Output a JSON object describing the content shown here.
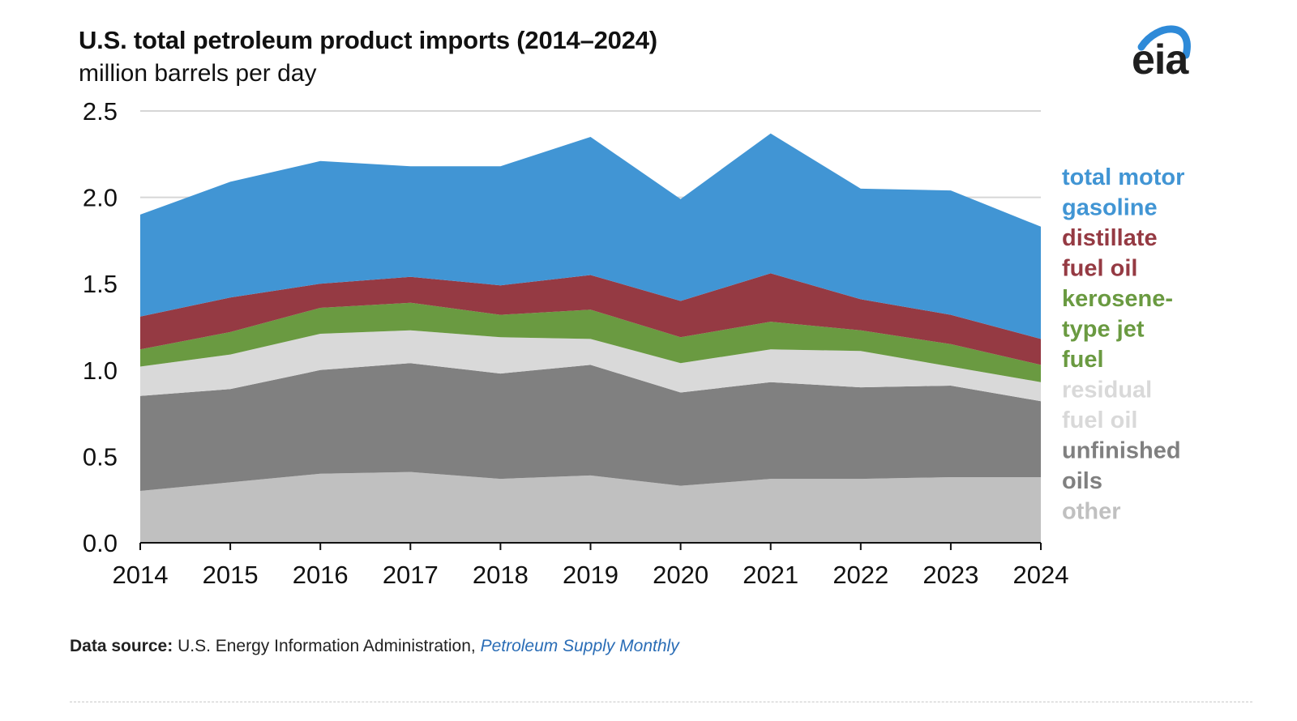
{
  "header": {
    "title": "U.S. total petroleum product imports (2014–2024)",
    "subtitle": "million barrels per day"
  },
  "logo": {
    "text": "eia",
    "icon": "eia-logo-arc-icon",
    "arc_color": "#2e8ad8"
  },
  "footer": {
    "source_label": "Data source:",
    "source_org": "U.S. Energy Information Administration,",
    "source_pub": "Petroleum Supply Monthly"
  },
  "chart_data": {
    "type": "area",
    "stacked": true,
    "title": "U.S. total petroleum product imports (2014–2024)",
    "ylabel": "million barrels per day",
    "xlabel": "",
    "ylim": [
      0,
      2.5
    ],
    "yticks": [
      "0.0",
      "0.5",
      "1.0",
      "1.5",
      "2.0",
      "2.5"
    ],
    "ytick_values": [
      0,
      0.5,
      1.0,
      1.5,
      2.0,
      2.5
    ],
    "grid": true,
    "legend": "right",
    "categories": [
      "2014",
      "2015",
      "2016",
      "2017",
      "2018",
      "2019",
      "2020",
      "2021",
      "2022",
      "2023",
      "2024"
    ],
    "series": [
      {
        "name": "other",
        "color": "#c0c0c0",
        "label_lines": [
          "other"
        ],
        "values": [
          0.3,
          0.35,
          0.4,
          0.41,
          0.37,
          0.39,
          0.33,
          0.37,
          0.37,
          0.38,
          0.38
        ]
      },
      {
        "name": "unfinished oils",
        "color": "#808080",
        "label_lines": [
          "unfinished",
          "oils"
        ],
        "values": [
          0.55,
          0.54,
          0.6,
          0.63,
          0.61,
          0.64,
          0.54,
          0.56,
          0.53,
          0.53,
          0.44
        ]
      },
      {
        "name": "residual fuel oil",
        "color": "#d9d9d9",
        "label_lines": [
          "residual",
          "fuel oil"
        ],
        "values": [
          0.17,
          0.2,
          0.21,
          0.19,
          0.21,
          0.15,
          0.17,
          0.19,
          0.21,
          0.11,
          0.11
        ]
      },
      {
        "name": "kerosene-type jet fuel",
        "color": "#6a9a41",
        "label_lines": [
          "kerosene-",
          "type jet",
          "fuel"
        ],
        "values": [
          0.1,
          0.13,
          0.15,
          0.16,
          0.13,
          0.17,
          0.15,
          0.16,
          0.12,
          0.13,
          0.1
        ]
      },
      {
        "name": "distillate fuel oil",
        "color": "#953a43",
        "label_lines": [
          "distillate",
          "fuel oil"
        ],
        "values": [
          0.19,
          0.2,
          0.14,
          0.15,
          0.17,
          0.2,
          0.21,
          0.28,
          0.18,
          0.17,
          0.15
        ]
      },
      {
        "name": "total motor gasoline",
        "color": "#4195d4",
        "label_lines": [
          "total motor",
          "gasoline"
        ],
        "values": [
          0.59,
          0.67,
          0.71,
          0.64,
          0.69,
          0.8,
          0.59,
          0.81,
          0.64,
          0.72,
          0.65
        ]
      }
    ]
  }
}
